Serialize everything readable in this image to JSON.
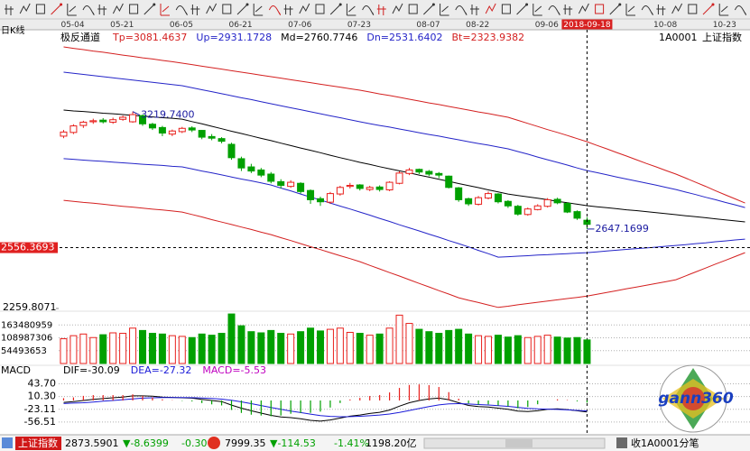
{
  "chart_data": [
    {
      "type": "candlestick",
      "period": "日K线",
      "title": "极反通道",
      "symbol": "1A0001",
      "symbol_name": "上证指数",
      "up_color": "#e8201c",
      "down_color": "#00a000",
      "categories": [
        "05-04",
        null,
        null,
        null,
        null,
        "05-21",
        null,
        null,
        null,
        null,
        null,
        "06-05",
        null,
        null,
        null,
        null,
        null,
        "06-21",
        null,
        null,
        null,
        null,
        null,
        "07-06",
        null,
        null,
        null,
        null,
        null,
        "07-23",
        null,
        null,
        null,
        null,
        null,
        null,
        "08-07",
        null,
        null,
        null,
        null,
        "08-22",
        null,
        null,
        null,
        null,
        null,
        null,
        "09-06",
        null,
        null,
        null,
        null,
        "2018-09-18",
        null,
        null,
        null,
        null,
        null,
        null,
        "10-08",
        null,
        null,
        null,
        null,
        null,
        "10-23",
        null,
        null,
        null
      ],
      "open": [
        3100,
        3118,
        3152,
        3170,
        3178,
        3168,
        3182,
        3170,
        3200,
        3158,
        3142,
        3110,
        3122,
        3140,
        3128,
        3098,
        3088,
        3060,
        2990,
        2950,
        2935,
        2915,
        2878,
        2855,
        2870,
        2835,
        2795,
        2778,
        2818,
        2855,
        2862,
        2840,
        2852,
        2838,
        2870,
        2918,
        2938,
        2928,
        2918,
        2905,
        2848,
        2795,
        2768,
        2798,
        2818,
        2782,
        2758,
        2718,
        2742,
        2758,
        2792,
        2772,
        2732,
        2690,
        null,
        null,
        null,
        null,
        null,
        null,
        null,
        null,
        null,
        null,
        null,
        null,
        null,
        null,
        null,
        null
      ],
      "high": [
        3130,
        3158,
        3175,
        3185,
        3188,
        3190,
        3200,
        3219.74,
        3205,
        3165,
        3150,
        3132,
        3145,
        3148,
        3130,
        3110,
        3095,
        3068,
        3000,
        2965,
        2945,
        2925,
        2890,
        2885,
        2875,
        2840,
        2805,
        2828,
        2858,
        2872,
        2866,
        2858,
        2860,
        2880,
        2928,
        2945,
        2942,
        2935,
        2925,
        2908,
        2852,
        2800,
        2808,
        2830,
        2822,
        2788,
        2765,
        2752,
        2768,
        2798,
        2800,
        2778,
        2738,
        2705,
        null,
        null,
        null,
        null,
        null,
        null,
        null,
        null,
        null,
        null,
        null,
        null,
        null,
        null,
        null,
        null
      ],
      "low": [
        3090,
        3110,
        3140,
        3160,
        3162,
        3160,
        3175,
        3165,
        3150,
        3130,
        3100,
        3100,
        3115,
        3120,
        3085,
        3080,
        3065,
        2985,
        2930,
        2920,
        2900,
        2870,
        2845,
        2848,
        2820,
        2770,
        2760,
        2770,
        2810,
        2845,
        2835,
        2832,
        2830,
        2832,
        2865,
        2910,
        2915,
        2905,
        2895,
        2845,
        2780,
        2760,
        2762,
        2792,
        2772,
        2750,
        2712,
        2712,
        2738,
        2752,
        2768,
        2725,
        2692,
        2647.1699,
        null,
        null,
        null,
        null,
        null,
        null,
        null,
        null,
        null,
        null,
        null,
        null,
        null,
        null,
        null,
        null
      ],
      "close": [
        3120,
        3150,
        3168,
        3175,
        3170,
        3180,
        3192,
        3205,
        3160,
        3140,
        3115,
        3125,
        3138,
        3130,
        3095,
        3090,
        3075,
        2995,
        2945,
        2930,
        2910,
        2880,
        2860,
        2875,
        2830,
        2790,
        2780,
        2820,
        2850,
        2860,
        2845,
        2850,
        2840,
        2875,
        2920,
        2935,
        2925,
        2915,
        2910,
        2850,
        2790,
        2770,
        2800,
        2820,
        2780,
        2760,
        2720,
        2745,
        2760,
        2790,
        2775,
        2730,
        2700,
        2670,
        null,
        null,
        null,
        null,
        null,
        null,
        null,
        null,
        null,
        null,
        null,
        null,
        null,
        null,
        null,
        null
      ],
      "series": [
        {
          "label": "Tp=3081.4637",
          "color": "#d42020",
          "values": [
            3535,
            3528,
            3522,
            3515,
            3509,
            3502,
            3495,
            3489,
            3482,
            3476,
            3469,
            3463,
            3456,
            3449,
            3441,
            3434,
            3427,
            3419,
            3412,
            3405,
            3397,
            3390,
            3383,
            3375,
            3368,
            3361,
            3353,
            3346,
            3339,
            3331,
            3324,
            3315,
            3306,
            3298,
            3289,
            3280,
            3271,
            3262,
            3254,
            3245,
            3236,
            3227,
            3218,
            3210,
            3201,
            3192,
            3177,
            3162,
            3147,
            3132,
            3118,
            3103,
            3088,
            3073,
            3055,
            3038,
            3020,
            3003,
            2985,
            2967,
            2950,
            2932,
            2915,
            2895,
            2875,
            2855,
            2834,
            2814,
            2794,
            2774
          ]
        },
        {
          "label": "Up=2931.1728",
          "color": "#2424c8",
          "values": [
            3412,
            3406,
            3401,
            3395,
            3390,
            3384,
            3379,
            3373,
            3368,
            3362,
            3357,
            3351,
            3346,
            3336,
            3326,
            3317,
            3307,
            3297,
            3287,
            3278,
            3268,
            3258,
            3248,
            3238,
            3229,
            3219,
            3209,
            3199,
            3190,
            3180,
            3170,
            3161,
            3152,
            3144,
            3135,
            3126,
            3117,
            3108,
            3100,
            3091,
            3082,
            3073,
            3064,
            3056,
            3047,
            3038,
            3025,
            3012,
            2998,
            2985,
            2972,
            2959,
            2945,
            2932,
            2922,
            2912,
            2901,
            2891,
            2881,
            2871,
            2861,
            2850,
            2840,
            2827,
            2815,
            2802,
            2790,
            2777,
            2765,
            2752
          ]
        },
        {
          "label": "Md=2760.7746",
          "color": "#000000",
          "values": [
            3227,
            3223,
            3220,
            3216,
            3212,
            3209,
            3205,
            3201,
            3198,
            3194,
            3190,
            3187,
            3183,
            3171,
            3160,
            3148,
            3136,
            3124,
            3113,
            3101,
            3089,
            3078,
            3066,
            3054,
            3042,
            3031,
            3019,
            3007,
            2995,
            2984,
            2972,
            2962,
            2951,
            2941,
            2931,
            2921,
            2910,
            2900,
            2890,
            2880,
            2869,
            2859,
            2849,
            2838,
            2828,
            2818,
            2811,
            2804,
            2797,
            2790,
            2782,
            2775,
            2768,
            2761,
            2756,
            2751,
            2746,
            2741,
            2737,
            2732,
            2727,
            2722,
            2717,
            2712,
            2707,
            2702,
            2697,
            2692,
            2687,
            2682
          ]
        },
        {
          "label": "Dn=2531.6402",
          "color": "#2424c8",
          "values": [
            2990,
            2987,
            2983,
            2980,
            2977,
            2973,
            2970,
            2967,
            2963,
            2960,
            2957,
            2953,
            2950,
            2940,
            2930,
            2921,
            2911,
            2901,
            2891,
            2882,
            2872,
            2862,
            2847,
            2833,
            2818,
            2803,
            2789,
            2774,
            2759,
            2745,
            2730,
            2715,
            2699,
            2684,
            2668,
            2653,
            2638,
            2622,
            2607,
            2591,
            2576,
            2560,
            2543,
            2527,
            2510,
            2512,
            2515,
            2517,
            2520,
            2522,
            2525,
            2527,
            2530,
            2532,
            2536,
            2540,
            2544,
            2548,
            2552,
            2555,
            2559,
            2563,
            2567,
            2571,
            2576,
            2580,
            2585,
            2589,
            2594,
            2598
          ]
        },
        {
          "label": "Bt=2323.9382",
          "color": "#d42020",
          "values": [
            2787,
            2782,
            2777,
            2773,
            2768,
            2763,
            2758,
            2754,
            2749,
            2744,
            2740,
            2735,
            2730,
            2718,
            2706,
            2693,
            2681,
            2669,
            2657,
            2645,
            2632,
            2620,
            2605,
            2591,
            2576,
            2561,
            2547,
            2532,
            2517,
            2503,
            2488,
            2470,
            2453,
            2435,
            2418,
            2400,
            2382,
            2365,
            2347,
            2330,
            2312,
            2300,
            2289,
            2277,
            2265,
            2271,
            2278,
            2284,
            2290,
            2296,
            2302,
            2308,
            2314,
            2320,
            2329,
            2338,
            2347,
            2356,
            2364,
            2373,
            2382,
            2391,
            2400,
            2419,
            2438,
            2457,
            2476,
            2494,
            2513,
            2532
          ]
        }
      ],
      "annotations": [
        {
          "value": 3219.74,
          "label": "3219.7400"
        },
        {
          "value": 2647.1699,
          "label": "2647.1699"
        }
      ],
      "cursor_price": 2556.3693,
      "ylim": [
        2259.8071,
        3557
      ],
      "yticks": [
        2259.8071
      ]
    },
    {
      "type": "bar",
      "values": [
        105000000,
        118000000,
        125000000,
        110000000,
        122000000,
        130000000,
        128000000,
        150000000,
        140000000,
        128000000,
        125000000,
        118000000,
        115000000,
        110000000,
        125000000,
        120000000,
        128000000,
        210000000,
        160000000,
        135000000,
        130000000,
        140000000,
        128000000,
        125000000,
        135000000,
        150000000,
        138000000,
        145000000,
        150000000,
        132000000,
        128000000,
        120000000,
        125000000,
        150000000,
        205000000,
        170000000,
        145000000,
        135000000,
        128000000,
        140000000,
        145000000,
        125000000,
        118000000,
        115000000,
        120000000,
        112000000,
        118000000,
        110000000,
        115000000,
        120000000,
        112000000,
        108000000,
        110000000,
        100000000,
        null,
        null,
        null,
        null,
        null,
        null,
        null,
        null,
        null,
        null,
        null,
        null,
        null,
        null,
        null,
        null
      ],
      "ylim": [
        0,
        217974612
      ],
      "yticks": [
        54493653,
        108987306,
        163480959
      ],
      "grid": true
    },
    {
      "type": "macd",
      "title": "MACD",
      "series": [
        {
          "label": "DIF=-30.09",
          "color": "#000000",
          "values": [
            -5,
            -3,
            0,
            3,
            5,
            7,
            9,
            12,
            12,
            11,
            9,
            8,
            7,
            6,
            3,
            0,
            -3,
            -12,
            -20,
            -27,
            -33,
            -39,
            -43,
            -45,
            -48,
            -52,
            -54,
            -51,
            -46,
            -41,
            -38,
            -34,
            -31,
            -25,
            -15,
            -6,
            0,
            4,
            6,
            2,
            -6,
            -13,
            -16,
            -17,
            -20,
            -23,
            -28,
            -29,
            -27,
            -23,
            -22,
            -24,
            -27,
            -30.09,
            null,
            null,
            null,
            null,
            null,
            null,
            null,
            null,
            null,
            null,
            null,
            null,
            null,
            null,
            null,
            null
          ]
        },
        {
          "label": "DEA=-27.32",
          "color": "#1a1ad8",
          "values": [
            -8,
            -7,
            -6,
            -4,
            -2,
            0,
            2,
            4,
            6,
            7,
            7.5,
            7.6,
            7.5,
            7.2,
            6.4,
            5.1,
            3.5,
            0.4,
            -3.7,
            -8.4,
            -13.3,
            -18.4,
            -23.3,
            -27.6,
            -31.7,
            -35.8,
            -39.4,
            -41.7,
            -42.6,
            -42.3,
            -41.4,
            -39.9,
            -38.1,
            -35.5,
            -31.4,
            -26.3,
            -21,
            -16,
            -11.6,
            -8.9,
            -8.3,
            -9.2,
            -10.6,
            -11.9,
            -13.5,
            -15.4,
            -17.9,
            -20.5,
            -22,
            -22.8,
            -23.5,
            -24.6,
            -25.9,
            -27.32,
            null,
            null,
            null,
            null,
            null,
            null,
            null,
            null,
            null,
            null,
            null,
            null,
            null,
            null,
            null,
            null
          ]
        },
        {
          "label": "MACD=-5.53",
          "color": "#c000c0",
          "bars": true,
          "values": [
            6,
            8,
            12,
            14,
            14,
            14,
            14,
            16,
            12,
            8,
            3,
            0.8,
            -1,
            -2.4,
            -6.8,
            -10.2,
            -13,
            -24.8,
            -32.6,
            -37.2,
            -39.4,
            -41.2,
            -39.4,
            -34.8,
            -32.6,
            -32.4,
            -29.2,
            -18.6,
            -6.8,
            2.6,
            6.8,
            11.8,
            14.2,
            21,
            32.8,
            40.6,
            42,
            40,
            35.2,
            21.8,
            4.6,
            -7.6,
            -10.8,
            -10.2,
            -13,
            -15.2,
            -20.2,
            -17,
            -10,
            -0.4,
            3,
            1.2,
            -2.2,
            -5.53,
            null,
            null,
            null,
            null,
            null,
            null,
            null,
            null,
            null,
            null,
            null,
            null,
            null,
            null,
            null,
            null
          ]
        }
      ],
      "ylim": [
        -85,
        66
      ],
      "yticks": [
        {
          "value": 43.7,
          "label": "43.70"
        },
        {
          "value": 10.3,
          "label": "10.30"
        },
        {
          "value": -23.11,
          "label": "-23.11"
        },
        {
          "value": -56.51,
          "label": "-56.51"
        }
      ],
      "grid": true
    }
  ],
  "logo": "gann360",
  "status_bar": {
    "index_name": "上证指数",
    "price": "2873.5901",
    "change": "▼-8.6399",
    "change_pct": "-0.30",
    "price2": "7999.35",
    "change2": "▼-114.53",
    "change2_pct": "-1.41%",
    "amount": "1198.20亿",
    "right_label": "收1A0001分笔"
  }
}
